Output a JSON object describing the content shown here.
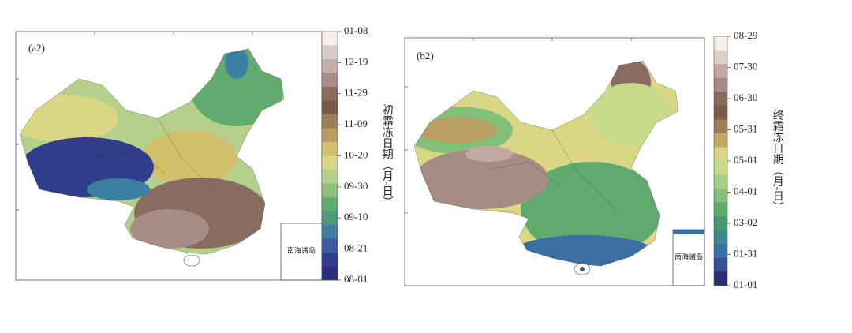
{
  "panels": [
    {
      "label": "(a2)",
      "inset_label": "南海诸岛",
      "colorbar": {
        "title": "初霜冻日期（月-日）",
        "ticks": [
          "01-08",
          "12-19",
          "11-29",
          "11-09",
          "10-20",
          "09-30",
          "09-10",
          "08-21",
          "08-01"
        ],
        "colors": [
          "#f4efec",
          "#d9ccc8",
          "#c4b0ab",
          "#a78d86",
          "#8a6b5f",
          "#7a5b48",
          "#9b7f55",
          "#b89e63",
          "#d2c06c",
          "#d9d784",
          "#b5d08a",
          "#8fc07d",
          "#62ab6e",
          "#4a9a7b",
          "#3b7fa2",
          "#3a5c9e",
          "#2f3d8a",
          "#2a2e78"
        ]
      }
    },
    {
      "label": "(b2)",
      "inset_label": "南海诸岛",
      "colorbar": {
        "title": "终霜冻日期（月-日）",
        "ticks": [
          "08-29",
          "07-30",
          "06-30",
          "05-31",
          "05-01",
          "04-01",
          "03-02",
          "01-31",
          "01-01"
        ],
        "colors": [
          "#f4efec",
          "#dcd0cb",
          "#c2aaa3",
          "#a58c84",
          "#8a6b5f",
          "#7a5b48",
          "#9b7f55",
          "#c3a866",
          "#d9d784",
          "#c8db8d",
          "#a6cf86",
          "#84bf79",
          "#5fab6d",
          "#47996f",
          "#3d8a88",
          "#3b6fa3",
          "#364f96",
          "#2a2e78"
        ]
      }
    }
  ]
}
